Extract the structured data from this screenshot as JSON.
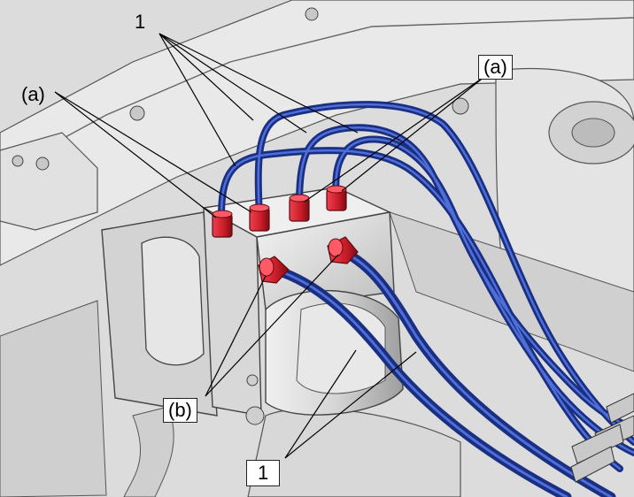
{
  "figure": {
    "description_hidden": false,
    "colors": {
      "background": "#d9d9d9",
      "body_light": "#ececec",
      "body_mid": "#c4c4c4",
      "body_dark": "#8c8c8c",
      "line": "#3a3a3a",
      "brake_pipe": "#1f3a9c",
      "brake_pipe_highlight": "#4f6fd8",
      "flare_nut": "#d0202c",
      "flare_nut_dark": "#8e1018"
    }
  },
  "callouts": {
    "pipes_top": "1",
    "pipes_bottom": "1",
    "nut_a_left": "(a)",
    "nut_a_right": "(a)",
    "nut_b": "(b)"
  }
}
